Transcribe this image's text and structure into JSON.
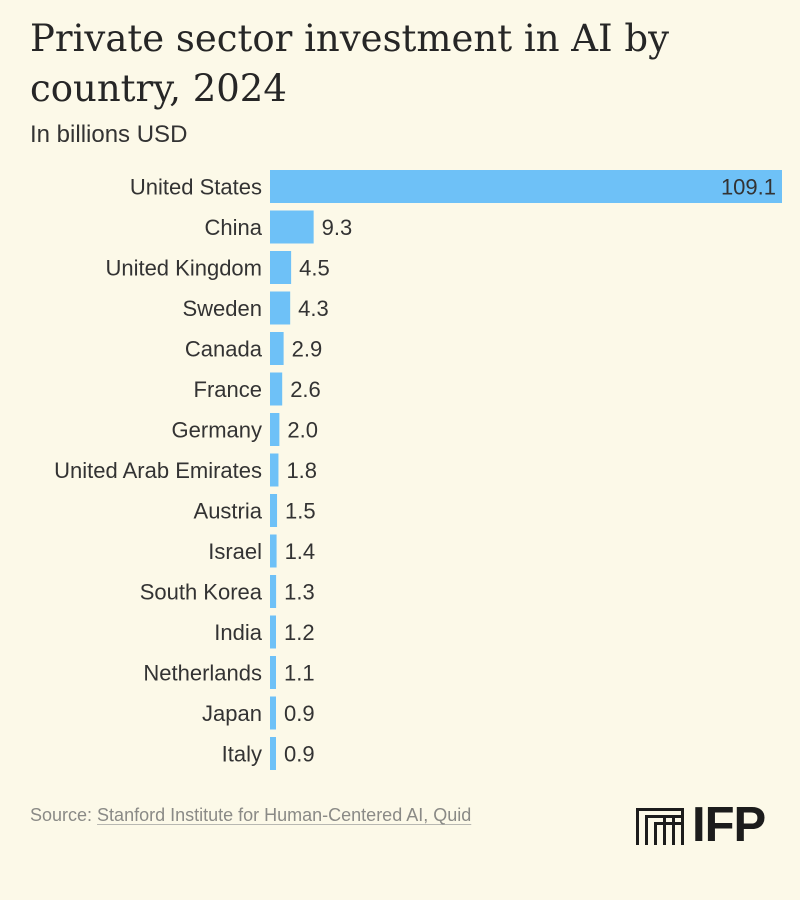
{
  "chart_data": {
    "type": "bar",
    "orientation": "horizontal",
    "title": "Private sector investment in AI by country, 2024",
    "subtitle": "In billions USD",
    "categories": [
      "United States",
      "China",
      "United Kingdom",
      "Sweden",
      "Canada",
      "France",
      "Germany",
      "United Arab Emirates",
      "Austria",
      "Israel",
      "South Korea",
      "India",
      "Netherlands",
      "Japan",
      "Italy"
    ],
    "values": [
      109.1,
      9.3,
      4.5,
      4.3,
      2.9,
      2.6,
      2.0,
      1.8,
      1.5,
      1.4,
      1.3,
      1.2,
      1.1,
      0.9,
      0.9
    ],
    "value_labels": [
      "109.1",
      "9.3",
      "4.5",
      "4.3",
      "2.9",
      "2.6",
      "2.0",
      "1.8",
      "1.5",
      "1.4",
      "1.3",
      "1.2",
      "1.1",
      "0.9",
      "0.9"
    ],
    "xlim": [
      0,
      109.1
    ],
    "grid": false,
    "bar_color": "#6ec1f7"
  },
  "footer": {
    "source_prefix": "Source: ",
    "source_link": "Stanford Institute for Human-Centered AI, Quid"
  },
  "logo": {
    "text": "IFP",
    "icon": "ifp-stairs-icon"
  }
}
